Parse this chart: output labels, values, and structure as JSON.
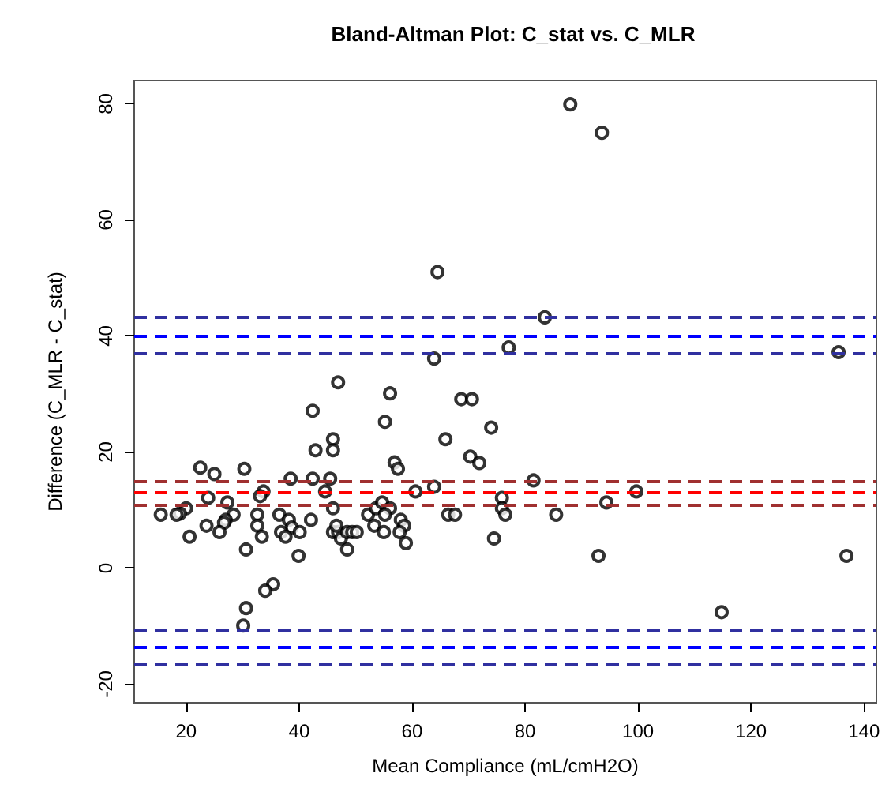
{
  "chart_data": {
    "type": "scatter",
    "title": "Bland-Altman Plot: C_stat vs. C_MLR",
    "xlabel": "Mean Compliance (mL/cmH2O)",
    "ylabel": "Difference (C_MLR - C_stat)",
    "xlim": [
      10.8,
      142.2
    ],
    "ylim": [
      -23.2,
      84
    ],
    "xticks": [
      20,
      40,
      60,
      80,
      100,
      120,
      140
    ],
    "yticks": [
      -20,
      0,
      20,
      40,
      60,
      80
    ],
    "marker": "circle",
    "series": [
      {
        "color": "#000000",
        "x": [
          46.9,
          56.1,
          42.4,
          55.2,
          46,
          42.9,
          46,
          56.9,
          57.5,
          22.5,
          25,
          30.3,
          38.5,
          42.4,
          45.5,
          33.7,
          44.6,
          60.6,
          23.9,
          33.1,
          27.3,
          20,
          18.9,
          15.5,
          18.3,
          28.4,
          32.6,
          36.5,
          46,
          42.1,
          52.2,
          53.6,
          54.7,
          56.1,
          55.2,
          53.3,
          58,
          58.6,
          27,
          26.7,
          23.6,
          32.6,
          38.2,
          38.7,
          40.1,
          36.8,
          37.6,
          33.4,
          25.9,
          20.6,
          46,
          46.9,
          47.4,
          48.5,
          49.4,
          50.2,
          46.6,
          55,
          57.8,
          58.9,
          48.5,
          30.6,
          39.9,
          35.4,
          34,
          30.6,
          30.1,
          68.7,
          70.6,
          74,
          65.9,
          70.3,
          71.9,
          81.5,
          63.9,
          99.7,
          75.9,
          94.4,
          75.9,
          76.5,
          66.4,
          67.6,
          85.5,
          74.5,
          93,
          114.8,
          88,
          93.6,
          64.5,
          83.5,
          77.1,
          63.9,
          135.5,
          136.9
        ],
        "values": [
          32,
          30.1,
          27.1,
          25.2,
          22.2,
          20.3,
          20.3,
          18.2,
          17.1,
          17.3,
          16.2,
          17.1,
          15.4,
          15.4,
          15.4,
          13.2,
          13.2,
          13.2,
          12.1,
          12.4,
          11.3,
          10.3,
          9.4,
          9.2,
          9.2,
          9.2,
          9.2,
          9.2,
          10.3,
          8.3,
          9.2,
          10.3,
          11.3,
          10.3,
          9.2,
          7.3,
          8.3,
          7.3,
          8.3,
          7.8,
          7.3,
          7.3,
          8.3,
          7,
          6.2,
          6.2,
          5.4,
          5.4,
          6.2,
          5.4,
          6.2,
          6.2,
          5.1,
          6.2,
          6.2,
          6.2,
          7.3,
          6.2,
          6.2,
          4.3,
          3.2,
          3.2,
          2.1,
          -2.8,
          -3.9,
          -6.9,
          -9.9,
          29.1,
          29.1,
          24.2,
          22.2,
          19.2,
          18.1,
          15.1,
          14,
          13.2,
          12.1,
          11.3,
          10.3,
          9.2,
          9.2,
          9.2,
          9.2,
          5.1,
          2.1,
          -7.6,
          79.9,
          75,
          51,
          43.2,
          38,
          36.1,
          37.2,
          2.1
        ]
      }
    ],
    "ref_lines": [
      {
        "axis": "y",
        "value": 13,
        "color": "#ff0000",
        "line_style": "dashed"
      },
      {
        "axis": "y",
        "value": 11,
        "color": "#a03030",
        "line_style": "dashed"
      },
      {
        "axis": "y",
        "value": 15,
        "color": "#a03030",
        "line_style": "dashed"
      },
      {
        "axis": "y",
        "value": 40,
        "color": "#0000ff",
        "line_style": "dashed"
      },
      {
        "axis": "y",
        "value": 37,
        "color": "#3030a0",
        "line_style": "dashed"
      },
      {
        "axis": "y",
        "value": 43.3,
        "color": "#3030a0",
        "line_style": "dashed"
      },
      {
        "axis": "y",
        "value": -13.5,
        "color": "#0000ff",
        "line_style": "dashed"
      },
      {
        "axis": "y",
        "value": -10.5,
        "color": "#3030a0",
        "line_style": "dashed"
      },
      {
        "axis": "y",
        "value": -16.5,
        "color": "#3030a0",
        "line_style": "dashed"
      }
    ]
  }
}
